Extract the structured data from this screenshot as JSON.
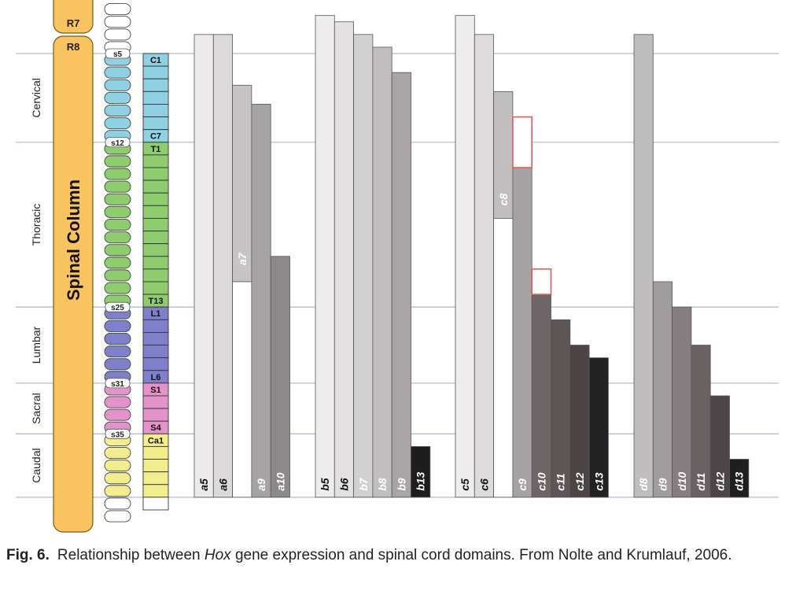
{
  "regions": [
    {
      "label": "Cervical",
      "from": 0,
      "to": 7
    },
    {
      "label": "Thoracic",
      "from": 7,
      "to": 20
    },
    {
      "label": "Lumbar",
      "from": 20,
      "to": 26
    },
    {
      "label": "Sacral",
      "from": 26,
      "to": 30
    },
    {
      "label": "Caudal",
      "from": 30,
      "to": 35
    }
  ],
  "spinal_column": {
    "label": "Spinal Column",
    "rhombomeres": [
      "R7",
      "R8"
    ]
  },
  "somites": {
    "labels": [
      {
        "text": "s5",
        "index": 0
      },
      {
        "text": "s12",
        "index": 7
      },
      {
        "text": "s25",
        "index": 20
      },
      {
        "text": "s31",
        "index": 26
      },
      {
        "text": "s35",
        "index": 30
      }
    ]
  },
  "vertebrae": {
    "labels": [
      {
        "text": "C1",
        "index": 0
      },
      {
        "text": "C7",
        "index": 6
      },
      {
        "text": "T1",
        "index": 7
      },
      {
        "text": "T13",
        "index": 19
      },
      {
        "text": "L1",
        "index": 20
      },
      {
        "text": "L6",
        "index": 25
      },
      {
        "text": "S1",
        "index": 26
      },
      {
        "text": "S4",
        "index": 29
      },
      {
        "text": "Ca1",
        "index": 30
      }
    ]
  },
  "colors": {
    "cervical": "#8fd0e3",
    "thoracic": "#8fcc6e",
    "lumbar": "#7f7fcc",
    "sacral": "#e393c9",
    "caudal": "#f3ee8d",
    "spinal_column": "#f9c45f",
    "guide_line": "#aebbe0",
    "highlight_box": "#e05a5a"
  },
  "groups": [
    {
      "name": "a",
      "genes": [
        {
          "label": "a5",
          "top": -1.5,
          "bottom": 35,
          "shade": "#eceaeb",
          "text": "dark"
        },
        {
          "label": "a6",
          "top": -1.5,
          "bottom": 35,
          "shade": "#dcd9da",
          "text": "dark"
        },
        {
          "label": "a7",
          "top": 2.5,
          "bottom": 18,
          "shade": "#c7c4c5",
          "text": "light",
          "label_pos": 16.7,
          "shade_bottom": 18,
          "open_to": 35
        },
        {
          "label": "a9",
          "top": 4,
          "bottom": 35,
          "shade": "#a6a3a4",
          "text": "light"
        },
        {
          "label": "a10",
          "top": 16,
          "bottom": 35,
          "shade": "#8d8889",
          "text": "light"
        }
      ]
    },
    {
      "name": "b",
      "genes": [
        {
          "label": "b5",
          "top": -3,
          "bottom": 35,
          "shade": "#eeecec",
          "text": "dark"
        },
        {
          "label": "b6",
          "top": -2.5,
          "bottom": 35,
          "shade": "#e3e0e1",
          "text": "dark"
        },
        {
          "label": "b7",
          "top": -1.5,
          "bottom": 35,
          "shade": "#d3d0d1",
          "text": "light"
        },
        {
          "label": "b8",
          "top": -0.5,
          "bottom": 35,
          "shade": "#c1bebf",
          "text": "light"
        },
        {
          "label": "b9",
          "top": 1.5,
          "bottom": 35,
          "shade": "#a9a5a6",
          "text": "light"
        },
        {
          "label": "b13",
          "top": 31,
          "bottom": 35,
          "shade": "#1d1d1d",
          "text": "light"
        }
      ]
    },
    {
      "name": "c",
      "genes": [
        {
          "label": "c5",
          "top": -3,
          "bottom": 35,
          "shade": "#eeecec",
          "text": "dark"
        },
        {
          "label": "c6",
          "top": -1.5,
          "bottom": 35,
          "shade": "#dedbdc",
          "text": "dark"
        },
        {
          "label": "c8",
          "top": 3,
          "bottom": 13,
          "shade": "#c1bebf",
          "text": "light",
          "label_pos": 12,
          "open_to": 35
        },
        {
          "label": "c9",
          "top": 5,
          "bottom": 35,
          "shade": "#a6a2a3",
          "text": "light",
          "box_to": 9
        },
        {
          "label": "c10",
          "top": 17,
          "bottom": 35,
          "shade": "#6e6566",
          "text": "light",
          "box_from": 17,
          "box_to": 19
        },
        {
          "label": "c11",
          "top": 21,
          "bottom": 35,
          "shade": "#5e5556",
          "text": "light"
        },
        {
          "label": "c12",
          "top": 23,
          "bottom": 35,
          "shade": "#4c4445",
          "text": "light"
        },
        {
          "label": "c13",
          "top": 24,
          "bottom": 35,
          "shade": "#222222",
          "text": "light"
        }
      ]
    },
    {
      "name": "d",
      "genes": [
        {
          "label": "d8",
          "top": -1.5,
          "bottom": 35,
          "shade": "#c0bdbe",
          "text": "light"
        },
        {
          "label": "d9",
          "top": 18,
          "bottom": 35,
          "shade": "#a19d9e",
          "text": "light"
        },
        {
          "label": "d10",
          "top": 20,
          "bottom": 35,
          "shade": "#857d7e",
          "text": "light"
        },
        {
          "label": "d11",
          "top": 23,
          "bottom": 35,
          "shade": "#6a6162",
          "text": "light"
        },
        {
          "label": "d12",
          "top": 27,
          "bottom": 35,
          "shade": "#4e4546",
          "text": "light"
        },
        {
          "label": "d13",
          "top": 32,
          "bottom": 35,
          "shade": "#1f1f1f",
          "text": "light"
        }
      ]
    }
  ],
  "caption": {
    "lead": "Fig. 6.",
    "text_before": "Relationship between ",
    "emphasis": "Hox",
    "text_after": " gene expression and spinal cord domains. From Nolte and Krumlauf, 2006."
  }
}
